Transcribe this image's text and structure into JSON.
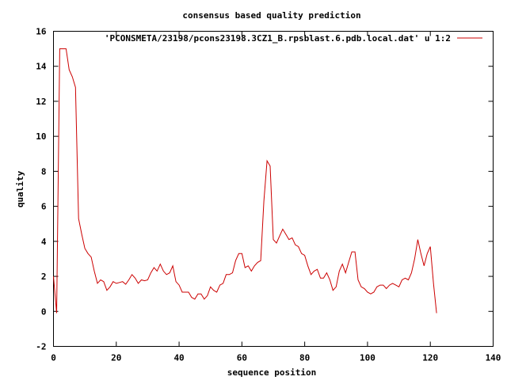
{
  "chart_data": {
    "type": "line",
    "title": "consensus based quality prediction",
    "xlabel": "sequence position",
    "ylabel": "quality",
    "xlim": [
      0,
      140
    ],
    "ylim": [
      -2,
      16
    ],
    "x_ticks": [
      "0",
      "20",
      "40",
      "60",
      "80",
      "100",
      "120",
      "140"
    ],
    "y_ticks": [
      "-2",
      "0",
      "2",
      "4",
      "6",
      "8",
      "10",
      "12",
      "14",
      "16"
    ],
    "grid": false,
    "legend_position": "top-right",
    "series_color": "#cc0000",
    "series": [
      {
        "name": "'PCONSMETA/23198/pcons23198.3CZ1_B.rpsblast.6.pdb.local.dat' u 1:2",
        "x": [
          0,
          1,
          2,
          3,
          4,
          5,
          6,
          7,
          8,
          9,
          10,
          11,
          12,
          13,
          14,
          15,
          16,
          17,
          18,
          19,
          20,
          21,
          22,
          23,
          24,
          25,
          26,
          27,
          28,
          29,
          30,
          31,
          32,
          33,
          34,
          35,
          36,
          37,
          38,
          39,
          40,
          41,
          42,
          43,
          44,
          45,
          46,
          47,
          48,
          49,
          50,
          51,
          52,
          53,
          54,
          55,
          56,
          57,
          58,
          59,
          60,
          61,
          62,
          63,
          64,
          65,
          66,
          67,
          68,
          69,
          70,
          71,
          72,
          73,
          74,
          75,
          76,
          77,
          78,
          79,
          80,
          81,
          82,
          83,
          84,
          85,
          86,
          87,
          88,
          89,
          90,
          91,
          92,
          93,
          94,
          95,
          96,
          97,
          98,
          99,
          100,
          101,
          102,
          103,
          104,
          105,
          106,
          107,
          108,
          109,
          110,
          111,
          112,
          113,
          114,
          115,
          116,
          117,
          118,
          119,
          120,
          121,
          122
        ],
        "y": [
          2.0,
          -0.1,
          15.0,
          15.0,
          15.0,
          13.8,
          13.4,
          12.8,
          5.3,
          4.4,
          3.6,
          3.3,
          3.1,
          2.3,
          1.6,
          1.8,
          1.7,
          1.2,
          1.4,
          1.7,
          1.6,
          1.65,
          1.7,
          1.55,
          1.8,
          2.1,
          1.9,
          1.6,
          1.8,
          1.75,
          1.8,
          2.2,
          2.5,
          2.3,
          2.7,
          2.3,
          2.1,
          2.2,
          2.6,
          1.7,
          1.5,
          1.1,
          1.1,
          1.1,
          0.8,
          0.7,
          1.0,
          1.0,
          0.7,
          0.9,
          1.4,
          1.2,
          1.1,
          1.5,
          1.6,
          2.1,
          2.1,
          2.2,
          2.9,
          3.3,
          3.3,
          2.5,
          2.6,
          2.3,
          2.6,
          2.8,
          2.9,
          6.3,
          8.6,
          8.3,
          4.1,
          3.9,
          4.3,
          4.7,
          4.4,
          4.1,
          4.2,
          3.8,
          3.7,
          3.3,
          3.2,
          2.6,
          2.1,
          2.3,
          2.4,
          1.9,
          1.9,
          2.2,
          1.8,
          1.2,
          1.4,
          2.3,
          2.7,
          2.2,
          2.8,
          3.4,
          3.4,
          1.8,
          1.4,
          1.3,
          1.1,
          1.0,
          1.1,
          1.4,
          1.5,
          1.5,
          1.3,
          1.5,
          1.6,
          1.5,
          1.4,
          1.8,
          1.9,
          1.8,
          2.2,
          3.0,
          4.1,
          3.3,
          2.6,
          3.3,
          3.7,
          1.6,
          -0.1
        ]
      }
    ]
  }
}
